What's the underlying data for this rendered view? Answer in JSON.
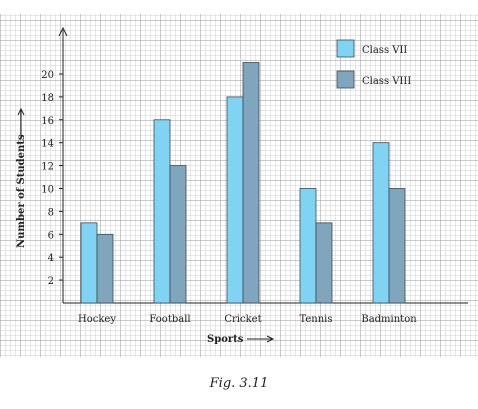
{
  "chart_data": {
    "type": "bar",
    "categories": [
      "Hockey",
      "Football",
      "Cricket",
      "Tennis",
      "Badminton"
    ],
    "series": [
      {
        "name": "Class VII",
        "values": [
          7,
          16,
          18,
          10,
          14
        ],
        "color": "#7fd4f4"
      },
      {
        "name": "Class VIII",
        "values": [
          6,
          12,
          21,
          7,
          10
        ],
        "color": "#7fa6bd"
      }
    ],
    "xlabel": "Sports",
    "ylabel": "Number of Students",
    "y_ticks": [
      "2",
      "4",
      "6",
      "8",
      "10",
      "12",
      "14",
      "16",
      "18",
      "20"
    ],
    "ylim": [
      0,
      22
    ],
    "grid": true,
    "legend_position": "top-right"
  },
  "caption": "Fig. 3.11"
}
